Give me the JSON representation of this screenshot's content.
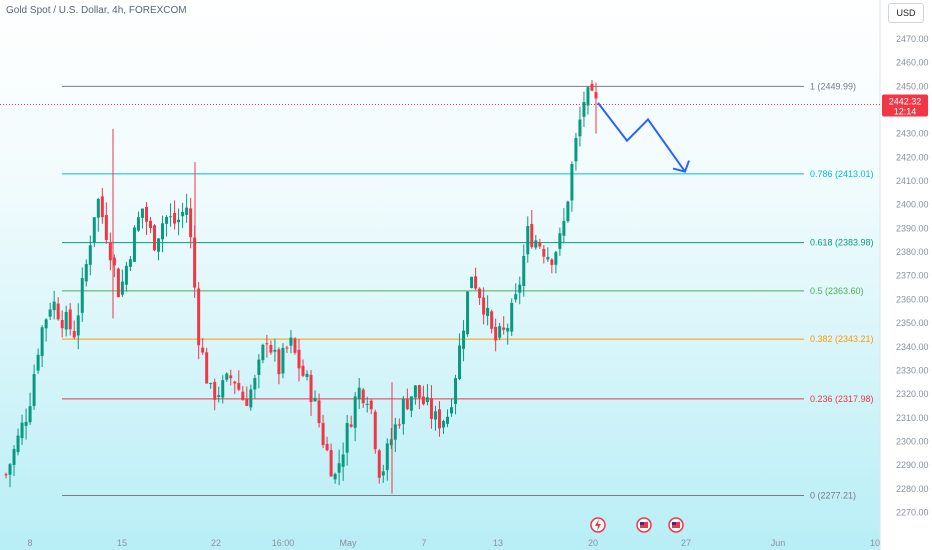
{
  "header": {
    "title": "Gold Spot / U.S. Dollar, 4h, FOREXCOM",
    "currency_button": "USD"
  },
  "price_tag": {
    "price": "2442.32",
    "countdown": "12:14",
    "color": "#f23645"
  },
  "events": [
    {
      "icon": "lightning-event-icon",
      "x": "20"
    },
    {
      "icon": "us-flag-icon",
      "x": "20.5"
    },
    {
      "icon": "us-flag-icon",
      "x": "21"
    }
  ],
  "colors": {
    "bull": "#089981",
    "bear": "#f23645",
    "arrow": "#2962ff"
  },
  "chart_data": {
    "type": "candlestick",
    "instrument": "Gold Spot / U.S. Dollar",
    "timeframe": "4h",
    "x_ticks": [
      "8",
      "15",
      "22",
      "16:00",
      "May",
      "7",
      "13",
      "20",
      "27",
      "Jun",
      "10"
    ],
    "y_ticks": [
      2270,
      2280,
      2290,
      2300,
      2310,
      2320,
      2330,
      2340,
      2350,
      2360,
      2370,
      2380,
      2390,
      2400,
      2410,
      2420,
      2430,
      2440,
      2450,
      2460,
      2470
    ],
    "ylim": [
      2266,
      2478
    ],
    "last_price": 2442.32,
    "fibonacci": [
      {
        "label": "1 (2449.99)",
        "value": 2449.99,
        "color": "#787b86"
      },
      {
        "label": "0.786 (2413.01)",
        "value": 2413.01,
        "color": "#00bcd4"
      },
      {
        "label": "0.618 (2383.98)",
        "value": 2383.98,
        "color": "#089981"
      },
      {
        "label": "0.5 (2363.60)",
        "value": 2363.6,
        "color": "#4caf50"
      },
      {
        "label": "0.382 (2343.21)",
        "value": 2343.21,
        "color": "#ff9800"
      },
      {
        "label": "0.236 (2317.98)",
        "value": 2317.98,
        "color": "#f23645"
      },
      {
        "label": "0 (2277.21)",
        "value": 2277.21,
        "color": "#787b86"
      }
    ],
    "projection": [
      {
        "x": 20.1,
        "y": 2443
      },
      {
        "x": 20.8,
        "y": 2427
      },
      {
        "x": 21.3,
        "y": 2436
      },
      {
        "x": 22.1,
        "y": 2414
      }
    ],
    "path": [
      [
        2286,
        2300,
        2272
      ],
      [
        2300,
        2316,
        2292
      ],
      [
        2315,
        2340,
        2308
      ],
      [
        2345,
        2362,
        2336
      ],
      [
        2360,
        2382,
        2342
      ],
      [
        2352,
        2368,
        2324
      ],
      [
        2346,
        2368,
        2330
      ],
      [
        2372,
        2392,
        2362
      ],
      [
        2404,
        2432,
        2360
      ],
      [
        2386,
        2400,
        2352
      ],
      [
        2362,
        2372,
        2338
      ],
      [
        2382,
        2398,
        2368
      ],
      [
        2399,
        2406,
        2380
      ],
      [
        2384,
        2402,
        2370
      ],
      [
        2395,
        2418,
        2386
      ],
      [
        2392,
        2412,
        2380
      ],
      [
        2400,
        2414,
        2382
      ],
      [
        2344,
        2360,
        2328
      ],
      [
        2320,
        2338,
        2302
      ],
      [
        2322,
        2334,
        2308
      ],
      [
        2328,
        2340,
        2312
      ],
      [
        2317,
        2330,
        2306
      ],
      [
        2325,
        2340,
        2316
      ],
      [
        2345,
        2354,
        2332
      ],
      [
        2330,
        2346,
        2318
      ],
      [
        2342,
        2352,
        2326
      ],
      [
        2330,
        2342,
        2316
      ],
      [
        2320,
        2336,
        2306
      ],
      [
        2300,
        2316,
        2288
      ],
      [
        2285,
        2302,
        2280
      ],
      [
        2303,
        2318,
        2296
      ],
      [
        2322,
        2328,
        2312
      ],
      [
        2320,
        2330,
        2305
      ],
      [
        2285,
        2300,
        2278
      ],
      [
        2302,
        2312,
        2292
      ],
      [
        2315,
        2335,
        2302
      ],
      [
        2322,
        2330,
        2310
      ],
      [
        2315,
        2325,
        2304
      ],
      [
        2308,
        2320,
        2302
      ],
      [
        2312,
        2324,
        2304
      ],
      [
        2340,
        2352,
        2330
      ],
      [
        2372,
        2378,
        2356
      ],
      [
        2360,
        2370,
        2342
      ],
      [
        2342,
        2356,
        2332
      ],
      [
        2346,
        2358,
        2334
      ],
      [
        2360,
        2366,
        2352
      ],
      [
        2388,
        2400,
        2378
      ],
      [
        2384,
        2392,
        2374
      ],
      [
        2378,
        2388,
        2370
      ],
      [
        2386,
        2402,
        2380
      ],
      [
        2420,
        2426,
        2410
      ],
      [
        2446,
        2450,
        2430
      ],
      [
        2442,
        2448,
        2436
      ]
    ]
  }
}
